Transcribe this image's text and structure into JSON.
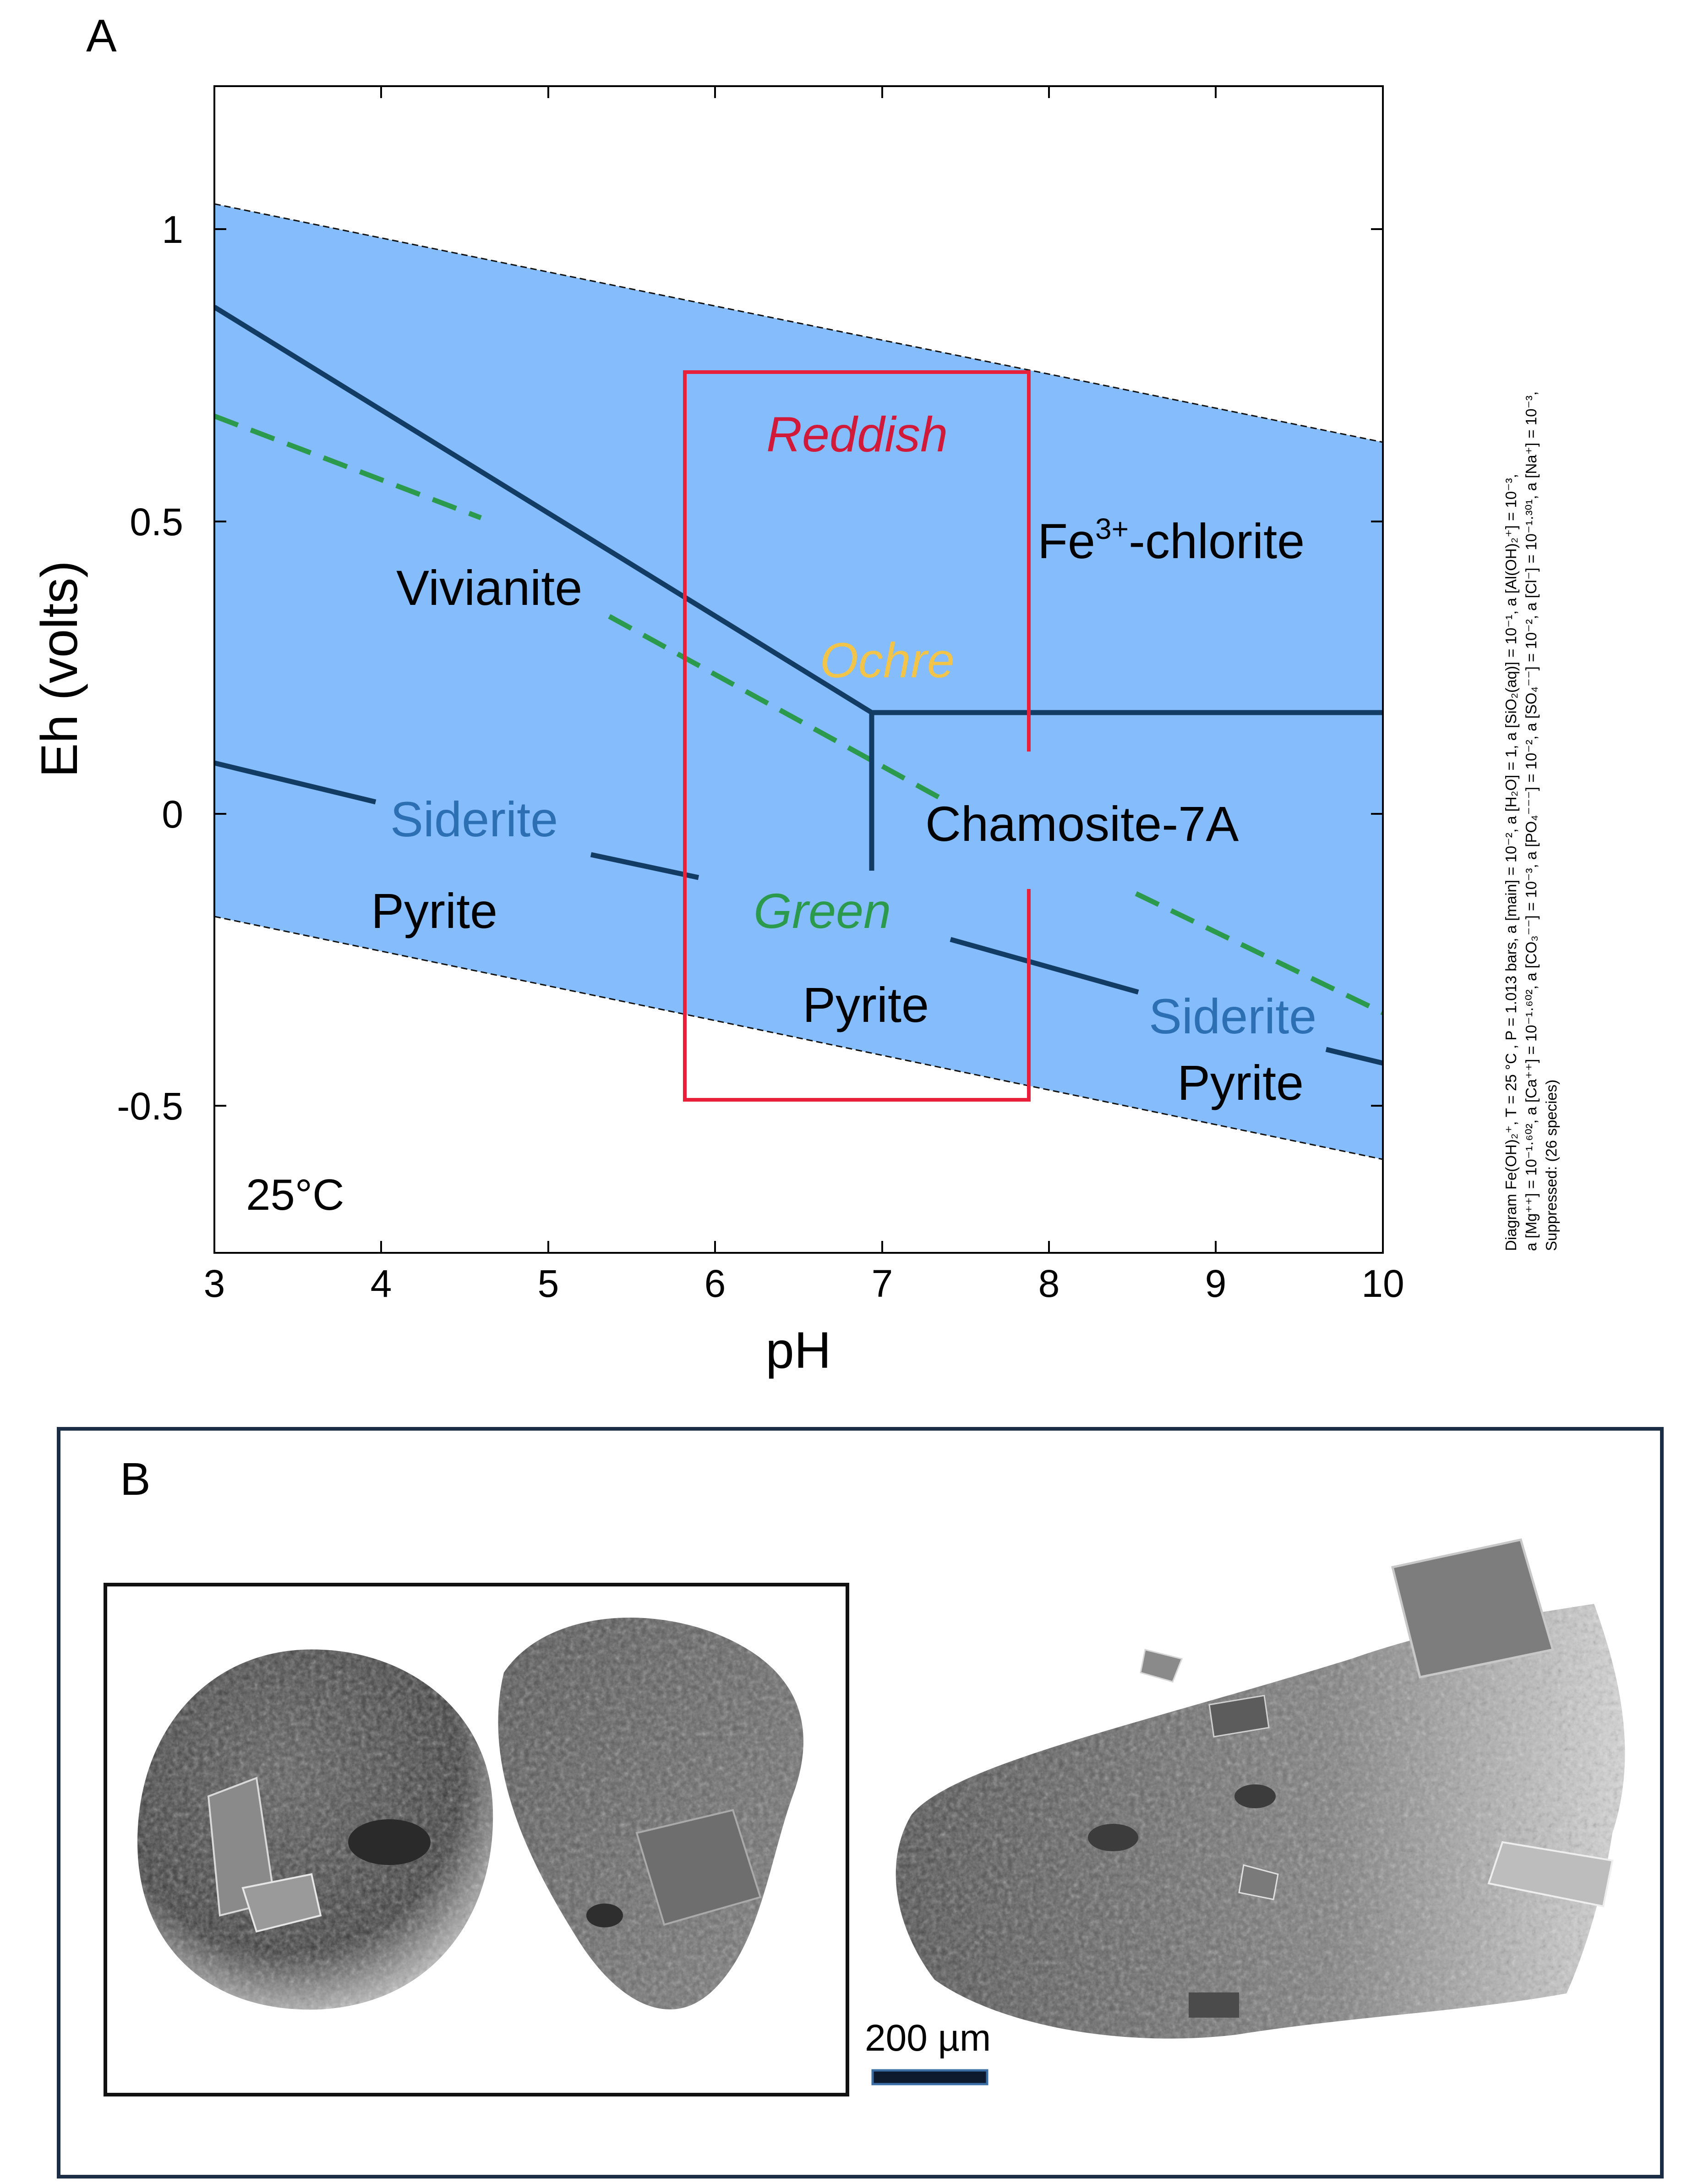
{
  "panel_a": {
    "label": "A",
    "temperature": "25°C",
    "x_axis": {
      "label": "pH",
      "ticks": [
        "3",
        "4",
        "5",
        "6",
        "7",
        "8",
        "9",
        "10"
      ]
    },
    "y_axis": {
      "label": "Eh (volts)",
      "ticks": [
        "1",
        "0.5",
        "0",
        "-0.5"
      ]
    },
    "fields": {
      "fe3_chlorite": {
        "main": "Fe",
        "sup": "3+",
        "rest": "-chlorite"
      },
      "vivianite": "Vivianite",
      "chamosite": "Chamosite-7A",
      "siderite_left": "Siderite",
      "pyrite_left": "Pyrite",
      "pyrite_center": "Pyrite",
      "siderite_right": "Siderite",
      "pyrite_right": "Pyrite"
    },
    "color_zones": {
      "reddish": "Reddish",
      "ochre": "Ochre",
      "green": "Green"
    },
    "caption_lines": [
      "Diagram Fe(OH)₂⁺, T = 25 °C , P = 1.013 bars, a [main] = 10⁻², a [H₂O] = 1, a [SiO₂(aq)] = 10⁻¹, a [Al(OH)₂⁺] = 10⁻³,",
      "a [Mg⁺⁺] = 10⁻¹·⁶⁰², a [Ca⁺⁺] = 10⁻¹·⁶⁰², a [CO₃⁻⁻] = 10⁻³, a [PO₄⁻⁻⁻] = 10⁻², a [SO₄⁻⁻] = 10⁻², a [Cl⁻] = 10⁻¹·³⁰¹, a [Na⁺] = 10⁻³,",
      "Suppressed: (26 species)"
    ],
    "colors": {
      "stability_field": "#85bcfb",
      "boundary": "#123c63",
      "water_limit": "#111111",
      "green_line": "#2c9a4c",
      "highlight_box": "#e8203a",
      "reddish": "#d11a3a",
      "ochre": "#f2c44a",
      "green": "#2c9a4c",
      "siderite": "#2d6fb3"
    }
  },
  "panel_b": {
    "label": "B",
    "scale_bar": "200 µm",
    "colors": {
      "frame": "#1b2d45",
      "scale_bar": "#1b2d45"
    }
  }
}
